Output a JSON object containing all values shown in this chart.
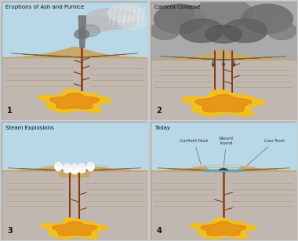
{
  "panels": [
    {
      "number": "1",
      "title": "Eruptions of Ash and Pumice"
    },
    {
      "number": "2",
      "title": "Caldera Collapse"
    },
    {
      "number": "3",
      "title": "Steam Explosions"
    },
    {
      "number": "4",
      "title": "Today"
    }
  ],
  "panel4_labels": [
    "Garfield Peak",
    "Wizard\nIsland",
    "Llao Rock"
  ],
  "sky_blue": "#b8d8e8",
  "sky_gray": "#aaaaaa",
  "ground_tan": "#c8a86a",
  "ground_light": "#d4b87a",
  "subsurface_gray": "#c0b8b0",
  "subsurface_light": "#ccc4bc",
  "magma_yellow": "#f0c020",
  "magma_orange": "#e07010",
  "vent_brown": "#8B3A10",
  "vent_light": "#a04820",
  "strata_tan": "#c8a870",
  "water_blue": "#5aaac0",
  "island_dark": "#404040",
  "smoke_dark": "#707070",
  "smoke_med": "#909090",
  "smoke_light": "#bbbbbb",
  "ash_white": "#dddddd",
  "border_color": "#999999",
  "bg_color": "#cccccc",
  "text_color": "#222222",
  "arrow_color": "#444444"
}
